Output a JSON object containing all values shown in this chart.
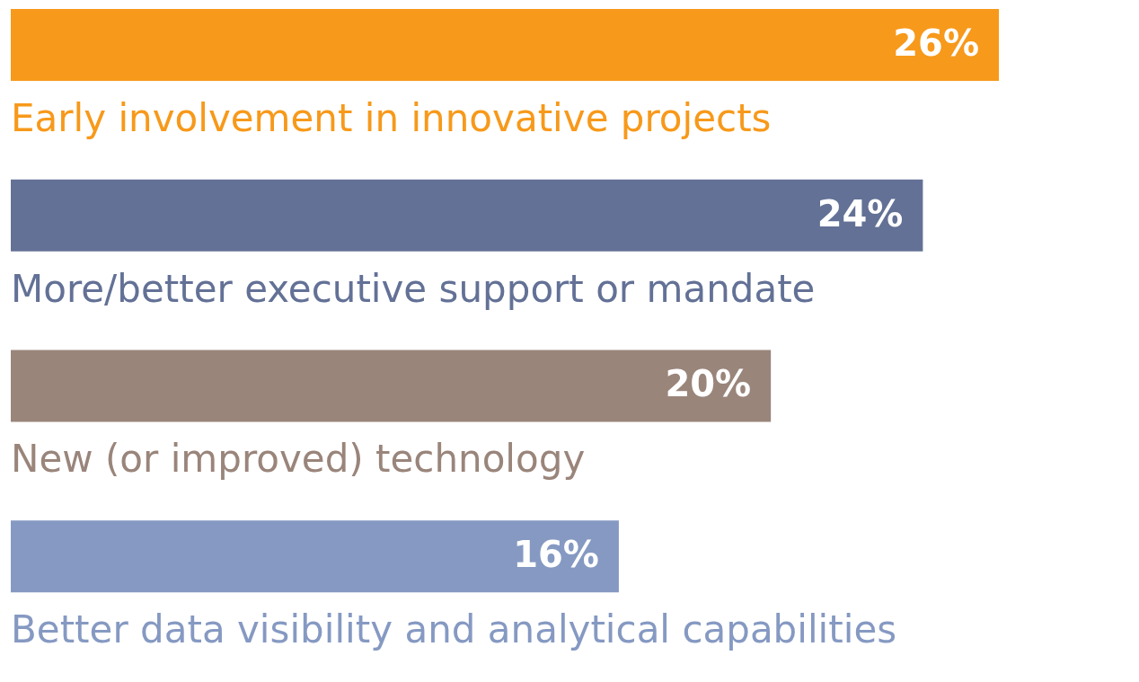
{
  "chart_data": {
    "type": "bar",
    "orientation": "horizontal",
    "categories": [
      "Early involvement in innovative projects",
      "More/better executive support or mandate",
      "New (or improved) technology",
      "Better data visibility and analytical capabilities"
    ],
    "values": [
      26,
      24,
      20,
      16
    ],
    "colors": [
      "#f7991a",
      "#637196",
      "#9a857b",
      "#8599c2"
    ],
    "value_labels": [
      "26%",
      "24%",
      "20%",
      "16%"
    ]
  }
}
